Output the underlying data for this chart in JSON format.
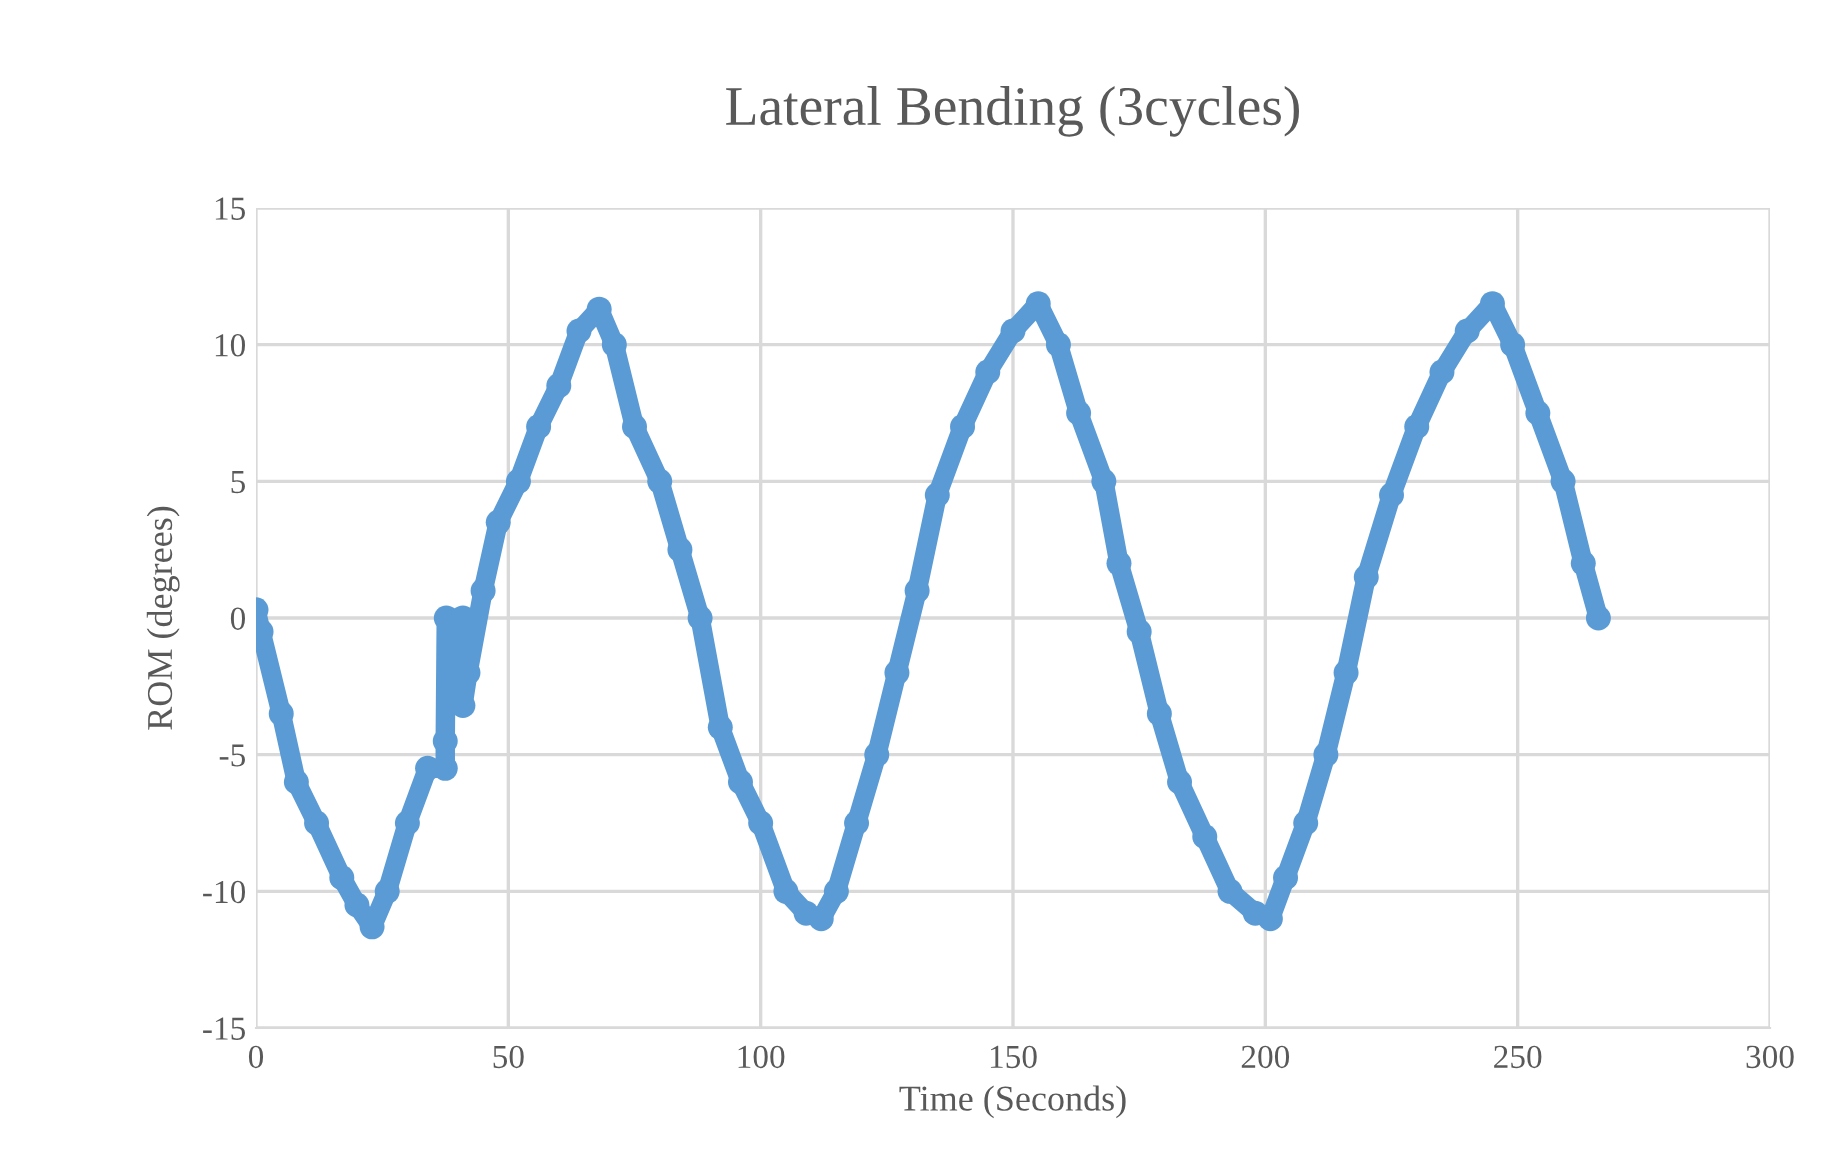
{
  "chart_data": {
    "type": "line",
    "title": "Lateral Bending (3cycles)",
    "xlabel": "Time (Seconds)",
    "ylabel": "ROM (degrees)",
    "xlim": [
      0,
      300
    ],
    "xticks": [
      0,
      50,
      100,
      150,
      200,
      250,
      300
    ],
    "ylim": [
      -15,
      15
    ],
    "yticks": [
      -15,
      -10,
      -5,
      0,
      5,
      10,
      15
    ],
    "grid": true,
    "marker": "circle",
    "line_style": "solid",
    "series": [
      {
        "color": "#5b9bd5",
        "x": [
          0,
          1,
          5,
          8,
          12,
          17,
          20,
          23,
          26,
          30,
          34,
          37.5,
          37.5,
          37.7,
          41,
          41,
          42,
          45,
          48,
          52,
          56,
          60,
          64,
          68,
          71,
          75,
          80,
          84,
          88,
          92,
          96,
          100,
          105,
          109,
          112,
          115,
          119,
          123,
          127,
          131,
          135,
          140,
          145,
          150,
          155,
          159,
          163,
          168,
          171,
          175,
          179,
          183,
          188,
          193,
          198,
          201,
          204,
          208,
          212,
          216,
          220,
          225,
          230,
          235,
          240,
          245,
          249,
          254,
          259,
          263,
          266
        ],
        "values": [
          0.3,
          -0.5,
          -3.5,
          -6,
          -7.5,
          -9.5,
          -10.5,
          -11.3,
          -10,
          -7.5,
          -5.5,
          -5.5,
          -4.5,
          0,
          0,
          -3.2,
          -2,
          1,
          3.5,
          5,
          7,
          8.5,
          10.5,
          11.3,
          10,
          7,
          5,
          2.5,
          0,
          -4,
          -6,
          -7.5,
          -10,
          -10.8,
          -11,
          -10,
          -7.5,
          -5,
          -2,
          1,
          4.5,
          7,
          9,
          10.5,
          11.5,
          10,
          7.5,
          5,
          2,
          -0.5,
          -3.5,
          -6,
          -8,
          -10,
          -10.8,
          -11,
          -9.5,
          -7.5,
          -5,
          -2,
          1.5,
          4.5,
          7,
          9,
          10.5,
          11.5,
          10,
          7.5,
          5,
          2,
          0
        ]
      }
    ]
  }
}
